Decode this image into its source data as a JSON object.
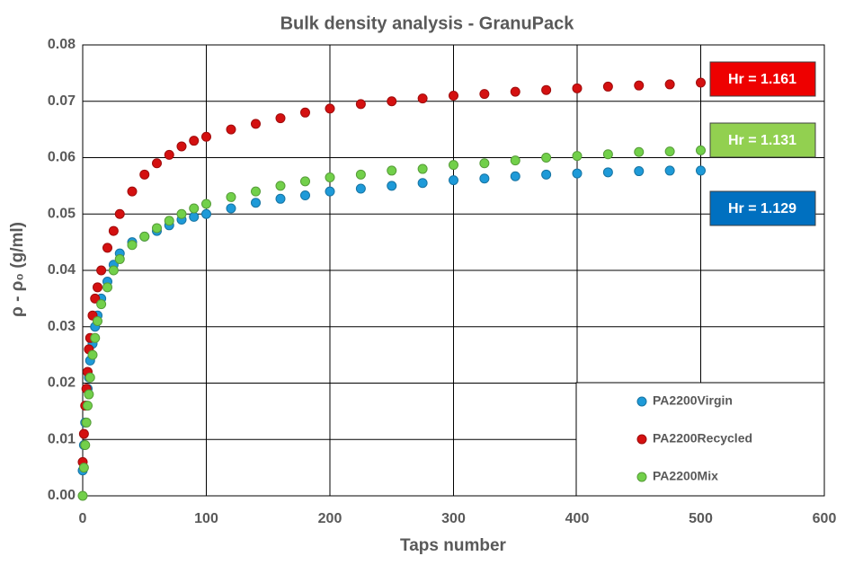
{
  "chart_data": {
    "type": "scatter",
    "title": "Bulk density analysis - GranuPack",
    "x_label": "Taps number",
    "y_label": "ρ - ρ₀ (g/ml)",
    "xlim": [
      0,
      600
    ],
    "xticks": [
      0,
      100,
      200,
      300,
      400,
      500,
      600
    ],
    "ylim": [
      0,
      0.08
    ],
    "yticks": [
      {
        "value": 0,
        "label": "0.00"
      },
      {
        "value": 0.01,
        "label": "0.01"
      },
      {
        "value": 0.02,
        "label": "0.02"
      },
      {
        "value": 0.03,
        "label": "0.03"
      },
      {
        "value": 0.04,
        "label": "0.04"
      },
      {
        "value": 0.05,
        "label": "0.05"
      },
      {
        "value": 0.06,
        "label": "0.06"
      },
      {
        "value": 0.07,
        "label": "0.07"
      },
      {
        "value": 0.08,
        "label": "0.08"
      }
    ],
    "grid": true,
    "legend": "lower right",
    "x": [
      0,
      1,
      2,
      3,
      4,
      5,
      6,
      8,
      10,
      12,
      15,
      20,
      25,
      30,
      40,
      50,
      60,
      70,
      80,
      90,
      100,
      120,
      140,
      160,
      180,
      200,
      225,
      250,
      275,
      300,
      325,
      350,
      375,
      400,
      425,
      450,
      475,
      500
    ],
    "series": [
      {
        "name": "PA2200Virgin",
        "color": "#1e9ad8",
        "values": [
          0.0045,
          0.009,
          0.013,
          0.016,
          0.019,
          0.021,
          0.024,
          0.027,
          0.03,
          0.032,
          0.035,
          0.038,
          0.041,
          0.043,
          0.045,
          0.046,
          0.047,
          0.048,
          0.049,
          0.0495,
          0.05,
          0.051,
          0.052,
          0.0527,
          0.0533,
          0.054,
          0.0545,
          0.055,
          0.0555,
          0.056,
          0.0563,
          0.0567,
          0.057,
          0.0572,
          0.0574,
          0.0576,
          0.0577,
          0.0577
        ]
      },
      {
        "name": "PA2200Recycled",
        "color": "#d41010",
        "values": [
          0.006,
          0.011,
          0.016,
          0.019,
          0.022,
          0.026,
          0.028,
          0.032,
          0.035,
          0.037,
          0.04,
          0.044,
          0.047,
          0.05,
          0.054,
          0.057,
          0.059,
          0.0605,
          0.062,
          0.063,
          0.0637,
          0.065,
          0.066,
          0.067,
          0.068,
          0.0687,
          0.0695,
          0.07,
          0.0705,
          0.071,
          0.0713,
          0.0717,
          0.072,
          0.0723,
          0.0726,
          0.0728,
          0.073,
          0.0733
        ]
      },
      {
        "name": "PA2200Mix",
        "color": "#72d04a",
        "values": [
          0.0,
          0.005,
          0.009,
          0.013,
          0.016,
          0.018,
          0.021,
          0.025,
          0.028,
          0.031,
          0.034,
          0.037,
          0.04,
          0.042,
          0.0445,
          0.046,
          0.0475,
          0.0488,
          0.05,
          0.051,
          0.0518,
          0.053,
          0.054,
          0.055,
          0.0558,
          0.0565,
          0.057,
          0.0577,
          0.058,
          0.0587,
          0.059,
          0.0595,
          0.06,
          0.0603,
          0.0606,
          0.061,
          0.0611,
          0.0613
        ]
      }
    ],
    "annotations": [
      {
        "text": "Hr = 1.161",
        "color": "#ee0000"
      },
      {
        "text": "Hr = 1.131",
        "color": "#92d050"
      },
      {
        "text": "Hr = 1.129",
        "color": "#0070c0"
      }
    ]
  }
}
